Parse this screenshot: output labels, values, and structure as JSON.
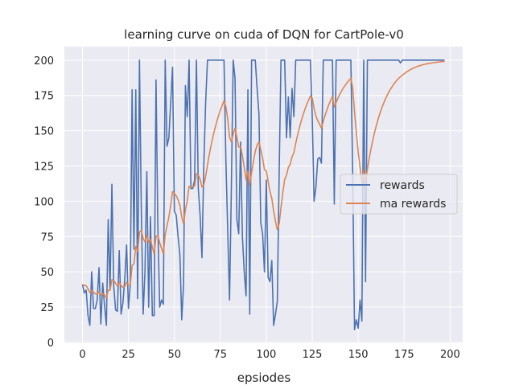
{
  "chart_data": {
    "type": "line",
    "title": "learning curve on cuda of DQN for CartPole-v0",
    "xlabel": "epsiodes",
    "ylabel": "",
    "xlim": [
      -9.85,
      206.85
    ],
    "ylim": [
      -0.6,
      209.6
    ],
    "xticks": [
      0,
      25,
      50,
      75,
      100,
      125,
      150,
      175,
      200
    ],
    "yticks": [
      0,
      25,
      50,
      75,
      100,
      125,
      150,
      175,
      200
    ],
    "grid": true,
    "legend_position": "center-right",
    "background": "#eaeaf2",
    "series": [
      {
        "name": "rewards",
        "color": "#4c72b0",
        "values": [
          41,
          35,
          37,
          19,
          12,
          50,
          24,
          24,
          30,
          53,
          13,
          42,
          26,
          12,
          87,
          37,
          112,
          40,
          23,
          22,
          65,
          20,
          28,
          45,
          69,
          24,
          41,
          179,
          66,
          179,
          31,
          200,
          95,
          20,
          50,
          121,
          25,
          89,
          19,
          19,
          186,
          83,
          25,
          30,
          27,
          200,
          139,
          145,
          170,
          195,
          93,
          90,
          75,
          62,
          16,
          41,
          182,
          160,
          200,
          109,
          109,
          115,
          200,
          109,
          90,
          60,
          125,
          170,
          200,
          200,
          200,
          200,
          200,
          200,
          200,
          200,
          200,
          200,
          130,
          80,
          30,
          110,
          200,
          187,
          87,
          77,
          142,
          75,
          50,
          33,
          179,
          20,
          200,
          200,
          200,
          180,
          162,
          85,
          77,
          50,
          115,
          46,
          43,
          58,
          12,
          20,
          29,
          120,
          200,
          200,
          200,
          145,
          174,
          145,
          180,
          160,
          200,
          200,
          200,
          200,
          200,
          200,
          200,
          200,
          200,
          160,
          100,
          110,
          130,
          131,
          127,
          200,
          200,
          200,
          200,
          200,
          200,
          98,
          200,
          200,
          200,
          200,
          200,
          200,
          200,
          200,
          200,
          120,
          9,
          16,
          10,
          30,
          15,
          200,
          43,
          200,
          200,
          200,
          200,
          200,
          200,
          200,
          200,
          200,
          200,
          200,
          200,
          200,
          200,
          200,
          200,
          200,
          200,
          198,
          200,
          200,
          200,
          200,
          200,
          200,
          200,
          200,
          200,
          200,
          200,
          200,
          200,
          200,
          200,
          200,
          200,
          200,
          200,
          200,
          200,
          200,
          200,
          200
        ]
      },
      {
        "name": "ma rewards",
        "color": "#dd8452",
        "values": [
          41,
          40.4,
          40.1,
          38.0,
          35.4,
          36.9,
          35.6,
          34.4,
          34.0,
          35.9,
          33.6,
          34.4,
          33.6,
          31.4,
          37.0,
          37.0,
          44.5,
          44.0,
          41.9,
          39.9,
          42.4,
          40.2,
          39.0,
          39.6,
          42.5,
          40.7,
          40.7,
          54.5,
          55.7,
          68.0,
          64.3,
          77.9,
          79.6,
          73.6,
          71.2,
          76.2,
          71.1,
          72.9,
          67.5,
          62.7,
          75.0,
          75.8,
          70.7,
          66.6,
          62.6,
          76.4,
          82.7,
          88.9,
          97.0,
          106.8,
          105.4,
          103.9,
          101.0,
          97.1,
          89.0,
          84.2,
          94.0,
          100.6,
          110.5,
          110.4,
          110.2,
          110.7,
          119.6,
          118.6,
          115.7,
          110.1,
          111.6,
          117.5,
          125.7,
          133.1,
          139.8,
          145.8,
          151.3,
          156.1,
          160.5,
          164.5,
          168.0,
          171.2,
          167.1,
          158.4,
          145.5,
          142.0,
          147.8,
          151.7,
          145.2,
          138.4,
          138.8,
          132.4,
          124.2,
          115.1,
          121.5,
          111.3,
          120.2,
          128.2,
          135.4,
          139.8,
          142.0,
          136.3,
          130.4,
          122.4,
          121.6,
          114.1,
          106.9,
          102.0,
          93.0,
          85.7,
          80.0,
          84.0,
          95.6,
          106.1,
          115.5,
          118.4,
          124.0,
          126.1,
          131.5,
          134.3,
          140.9,
          146.8,
          152.1,
          156.9,
          161.2,
          165.1,
          168.6,
          171.7,
          174.6,
          173.1,
          165.8,
          160.2,
          157.2,
          154.6,
          151.8,
          156.6,
          161.0,
          164.9,
          168.4,
          171.5,
          174.4,
          166.8,
          170.1,
          173.1,
          175.8,
          178.2,
          180.4,
          182.3,
          184.1,
          185.7,
          187.1,
          180.4,
          163.3,
          148.6,
          134.7,
          124.2,
          113.3,
          122.0,
          114.1,
          122.7,
          130.4,
          137.4,
          143.6,
          149.3,
          154.3,
          158.9,
          163.0,
          166.7,
          170.0,
          173.0,
          175.7,
          178.2,
          180.3,
          182.3,
          184.1,
          185.7,
          187.1,
          188.2,
          189.4,
          190.4,
          191.4,
          192.2,
          193.0,
          193.7,
          194.3,
          194.9,
          195.4,
          195.9,
          196.3,
          196.7,
          197.0,
          197.3,
          197.6,
          197.8,
          198.0,
          198.2,
          198.4,
          198.6,
          198.7,
          198.9,
          199.0,
          199.1
        ]
      }
    ]
  }
}
